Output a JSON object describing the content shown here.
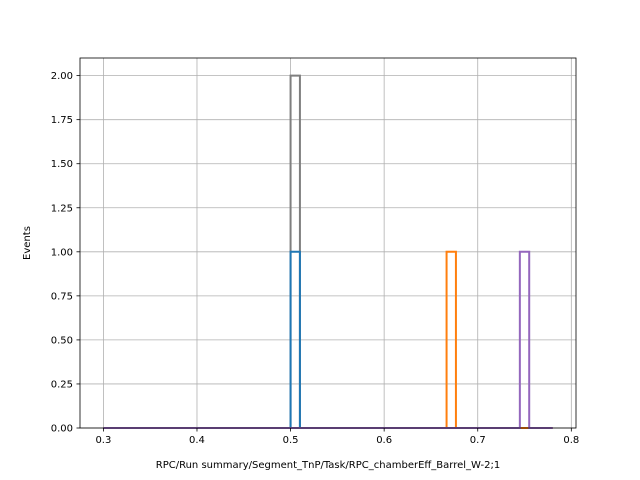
{
  "chart_data": {
    "type": "histogram-step",
    "xlabel": "RPC/Run summary/Segment_TnP/Task/RPC_chamberEff_Barrel_W-2;1",
    "ylabel": "Events",
    "xlim": [
      0.275,
      0.805
    ],
    "ylim": [
      0,
      2.1
    ],
    "xticks": [
      "0.3",
      "0.4",
      "0.5",
      "0.6",
      "0.7",
      "0.8"
    ],
    "yticks": [
      "0.00",
      "0.25",
      "0.50",
      "0.75",
      "1.00",
      "1.25",
      "1.50",
      "1.75",
      "2.00"
    ],
    "grid": true,
    "baseline_range": [
      0.3,
      0.78
    ],
    "series": [
      {
        "color": "#7f7f7f",
        "bins": [
          {
            "x0": 0.5,
            "x1": 0.51,
            "value": 2
          }
        ]
      },
      {
        "color": "#1f77b4",
        "bins": [
          {
            "x0": 0.5,
            "x1": 0.51,
            "value": 1
          }
        ]
      },
      {
        "color": "#ff7f0e",
        "bins": [
          {
            "x0": 0.6667,
            "x1": 0.6767,
            "value": 1
          }
        ]
      },
      {
        "color": "#9467bd",
        "bins": [
          {
            "x0": 0.745,
            "x1": 0.755,
            "value": 1
          }
        ]
      }
    ]
  }
}
